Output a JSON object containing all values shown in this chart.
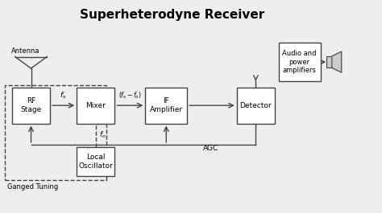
{
  "title": "Superheterodyne Receiver",
  "title_fontsize": 11,
  "title_fontweight": "bold",
  "bg_color": "#eeeeee",
  "box_color": "#ffffff",
  "box_edge_color": "#444444",
  "line_color": "#444444",
  "text_color": "#000000",
  "blocks": {
    "rf": [
      0.03,
      0.42,
      0.1,
      0.17
    ],
    "mixer": [
      0.2,
      0.42,
      0.1,
      0.17
    ],
    "if_amp": [
      0.38,
      0.42,
      0.11,
      0.17
    ],
    "detector": [
      0.62,
      0.42,
      0.1,
      0.17
    ],
    "audio": [
      0.73,
      0.62,
      0.11,
      0.18
    ],
    "local": [
      0.2,
      0.17,
      0.1,
      0.14
    ]
  },
  "block_labels": {
    "rf": "RF\nStage",
    "mixer": "Mixer",
    "if_amp": "IF\nAmplifier",
    "detector": "Detector",
    "audio": "Audio and\npower\namplifiers",
    "local": "Local\nOscillator"
  }
}
